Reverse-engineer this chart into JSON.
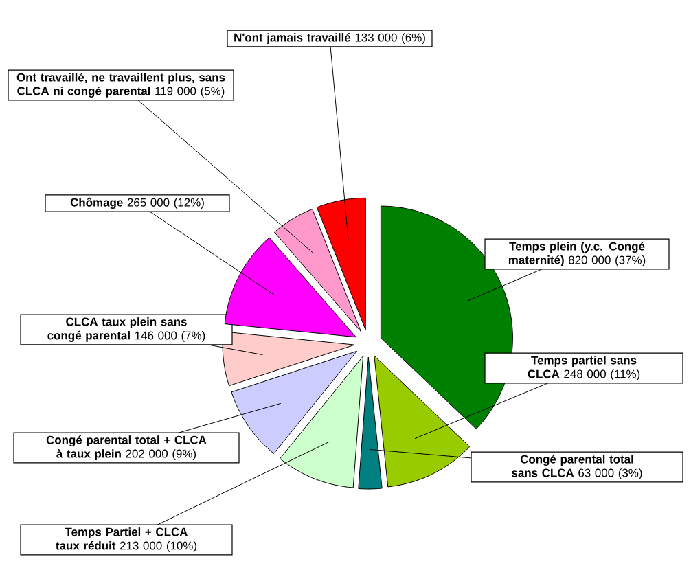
{
  "chart_data": {
    "type": "pie",
    "categories": [
      "Temps plein (y.c. Congé maternité)",
      "Temps partiel sans CLCA",
      "Congé parental total sans CLCA",
      "Temps Partiel + CLCA taux réduit",
      "Congé parental total + CLCA à taux plein",
      "CLCA taux plein sans congé parental",
      "Chômage",
      "Ont travaillé, ne travaillent plus, sans CLCA ni congé parental",
      "N'ont jamais travaillé"
    ],
    "values": [
      820000,
      248000,
      63000,
      213000,
      202000,
      146000,
      265000,
      119000,
      133000
    ],
    "value_labels": [
      "820 000 (37%)",
      "248 000 (11%)",
      "63 000 (3%)",
      "213 000 (10%)",
      "202 000 (9%)",
      "146 000 (7%)",
      "265 000 (12%)",
      "119 000 (5%)",
      "133 000 (6%)"
    ],
    "colors": [
      "#008000",
      "#99cc00",
      "#008080",
      "#ccffcc",
      "#ccccff",
      "#ffcccc",
      "#ff00ff",
      "#ff99cc",
      "#ff0000"
    ]
  }
}
